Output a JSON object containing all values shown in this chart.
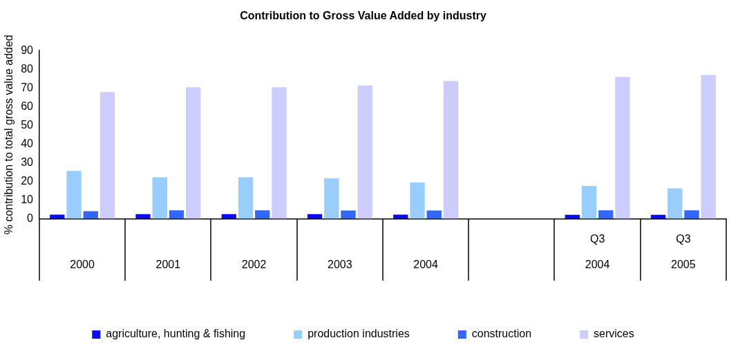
{
  "chart_data": {
    "type": "bar",
    "title": "Contribution to Gross Value Added by industry",
    "ylabel": "% contribution to total gross value added",
    "categories": [
      "2000",
      "2001",
      "2002",
      "2003",
      "2004",
      null,
      "Q3 2004",
      "Q3 2005"
    ],
    "series": [
      {
        "name": "agriculture, hunting & fishing",
        "color": "#0b0bf0",
        "values": [
          2.2,
          2.5,
          2.5,
          2.5,
          2.2,
          null,
          2.1,
          2.1
        ]
      },
      {
        "name": "production industries",
        "color": "#99ccff",
        "values": [
          25.6,
          22.2,
          22.2,
          21.6,
          19.4,
          null,
          17.5,
          16.2
        ]
      },
      {
        "name": "construction",
        "color": "#3366ff",
        "values": [
          4.0,
          4.5,
          4.5,
          4.4,
          4.4,
          null,
          4.5,
          4.5
        ]
      },
      {
        "name": "services",
        "color": "#ccccff",
        "values": [
          67.8,
          70.4,
          70.4,
          71.3,
          73.7,
          null,
          75.9,
          76.9
        ]
      }
    ],
    "ylim": [
      0,
      90
    ],
    "yticks": [
      0,
      10,
      20,
      30,
      40,
      50,
      60,
      70,
      80,
      90
    ],
    "legend": "bottom"
  }
}
